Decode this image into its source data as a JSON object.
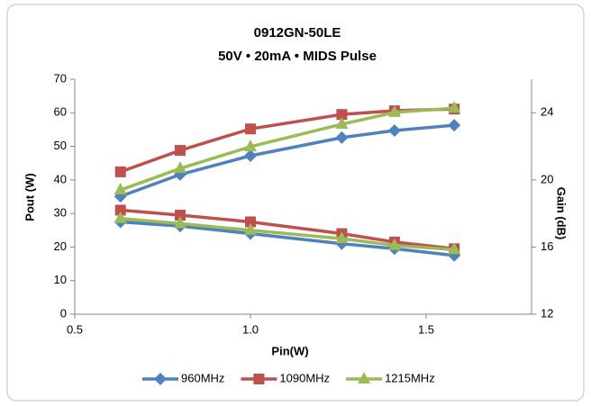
{
  "chart_data": {
    "type": "line",
    "title": "0912GN-50LE",
    "subtitle": "50V • 20mA • MIDS Pulse",
    "x_label": "Pin(W)",
    "y_label": "Pout (W)",
    "y2_label": "Gain (dB)",
    "x": [
      0.63,
      0.8,
      1.0,
      1.26,
      1.41,
      1.58
    ],
    "xlim": [
      0.5,
      1.8
    ],
    "xticks": [
      0.5,
      {
        "value": 1,
        "label": "1.0"
      },
      1.5
    ],
    "ylim": [
      0,
      70
    ],
    "yticks": [
      0,
      10,
      20,
      30,
      40,
      50,
      60,
      70
    ],
    "y2lim": [
      12,
      26
    ],
    "y2ticks": [
      12,
      16,
      20,
      24
    ],
    "grid": false,
    "legend": "bottom",
    "series": [
      {
        "name": "960MHz",
        "color": "#4f81bd",
        "marker": "diamond",
        "values": [
          35.1,
          41.6,
          47.2,
          52.6,
          54.7,
          56.3
        ],
        "y2_values": [
          17.5,
          17.25,
          16.8,
          16.2,
          15.9,
          15.5
        ]
      },
      {
        "name": "1090MHz",
        "color": "#c0504d",
        "marker": "square",
        "values": [
          42.4,
          48.8,
          55.2,
          59.5,
          60.6,
          61.1
        ],
        "y2_values": [
          18.2,
          17.9,
          17.5,
          16.8,
          16.3,
          15.9
        ]
      },
      {
        "name": "1215MHz",
        "color": "#9bbb59",
        "marker": "triangle",
        "values": [
          37.0,
          43.4,
          49.9,
          56.6,
          60.1,
          61.4
        ],
        "y2_values": [
          17.7,
          17.4,
          17.0,
          16.5,
          16.1,
          15.85
        ]
      }
    ]
  }
}
